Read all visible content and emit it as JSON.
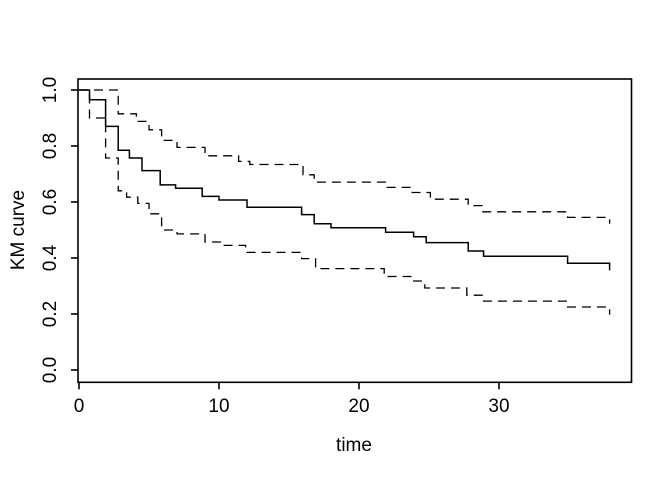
{
  "chart_data": {
    "type": "line",
    "chart_style": "kaplan-meier-step",
    "title": "",
    "xlabel": "time",
    "ylabel": "KM curve",
    "xlim": [
      0,
      39.4
    ],
    "ylim": [
      -0.04,
      1.04
    ],
    "grid": false,
    "legend": "none",
    "line_color": "#000000",
    "background_color": "#ffffff",
    "x_ticks": {
      "values": [
        0,
        10,
        20,
        30
      ],
      "labels": [
        "0",
        "10",
        "20",
        "30"
      ]
    },
    "y_ticks": {
      "values": [
        0.0,
        0.2,
        0.4,
        0.6,
        0.8,
        1.0
      ],
      "labels": [
        "0.0",
        "0.2",
        "0.4",
        "0.6",
        "0.8",
        "1.0"
      ]
    },
    "series": [
      {
        "name": "km-estimate",
        "line_style": "solid",
        "points": [
          [
            0,
            1.0
          ],
          [
            0.75,
            0.965
          ],
          [
            1.9,
            0.87
          ],
          [
            2.8,
            0.785
          ],
          [
            3.6,
            0.757
          ],
          [
            4.5,
            0.712
          ],
          [
            5.8,
            0.661
          ],
          [
            6.9,
            0.649
          ],
          [
            8.8,
            0.62
          ],
          [
            10,
            0.607
          ],
          [
            12,
            0.581
          ],
          [
            15.9,
            0.555
          ],
          [
            16.8,
            0.522
          ],
          [
            18,
            0.508
          ],
          [
            21.9,
            0.492
          ],
          [
            23.9,
            0.476
          ],
          [
            24.8,
            0.455
          ],
          [
            27.8,
            0.425
          ],
          [
            28.9,
            0.406
          ],
          [
            34.9,
            0.381
          ],
          [
            37.9,
            0.356
          ]
        ]
      },
      {
        "name": "upper-confidence-band",
        "line_style": "dashed",
        "points": [
          [
            0,
            1.0
          ],
          [
            2.8,
            0.915
          ],
          [
            4.1,
            0.888
          ],
          [
            5.0,
            0.858
          ],
          [
            5.9,
            0.82
          ],
          [
            7.0,
            0.795
          ],
          [
            9.0,
            0.765
          ],
          [
            11.4,
            0.745
          ],
          [
            12.2,
            0.734
          ],
          [
            16.0,
            0.697
          ],
          [
            16.8,
            0.671
          ],
          [
            21.9,
            0.652
          ],
          [
            23.8,
            0.634
          ],
          [
            25.1,
            0.61
          ],
          [
            27.8,
            0.587
          ],
          [
            28.8,
            0.565
          ],
          [
            34.9,
            0.545
          ],
          [
            37.9,
            0.522
          ]
        ]
      },
      {
        "name": "lower-confidence-band",
        "line_style": "dashed",
        "points": [
          [
            0,
            1.0
          ],
          [
            0.75,
            0.9
          ],
          [
            1.9,
            0.757
          ],
          [
            2.8,
            0.64
          ],
          [
            3.4,
            0.617
          ],
          [
            4.2,
            0.595
          ],
          [
            5.0,
            0.558
          ],
          [
            5.9,
            0.5
          ],
          [
            7.0,
            0.486
          ],
          [
            9.0,
            0.457
          ],
          [
            10.1,
            0.445
          ],
          [
            11.9,
            0.42
          ],
          [
            15.9,
            0.398
          ],
          [
            16.9,
            0.362
          ],
          [
            21.8,
            0.334
          ],
          [
            23.7,
            0.318
          ],
          [
            24.7,
            0.293
          ],
          [
            27.7,
            0.267
          ],
          [
            28.9,
            0.246
          ],
          [
            34.9,
            0.225
          ],
          [
            37.9,
            0.198
          ]
        ]
      }
    ]
  }
}
